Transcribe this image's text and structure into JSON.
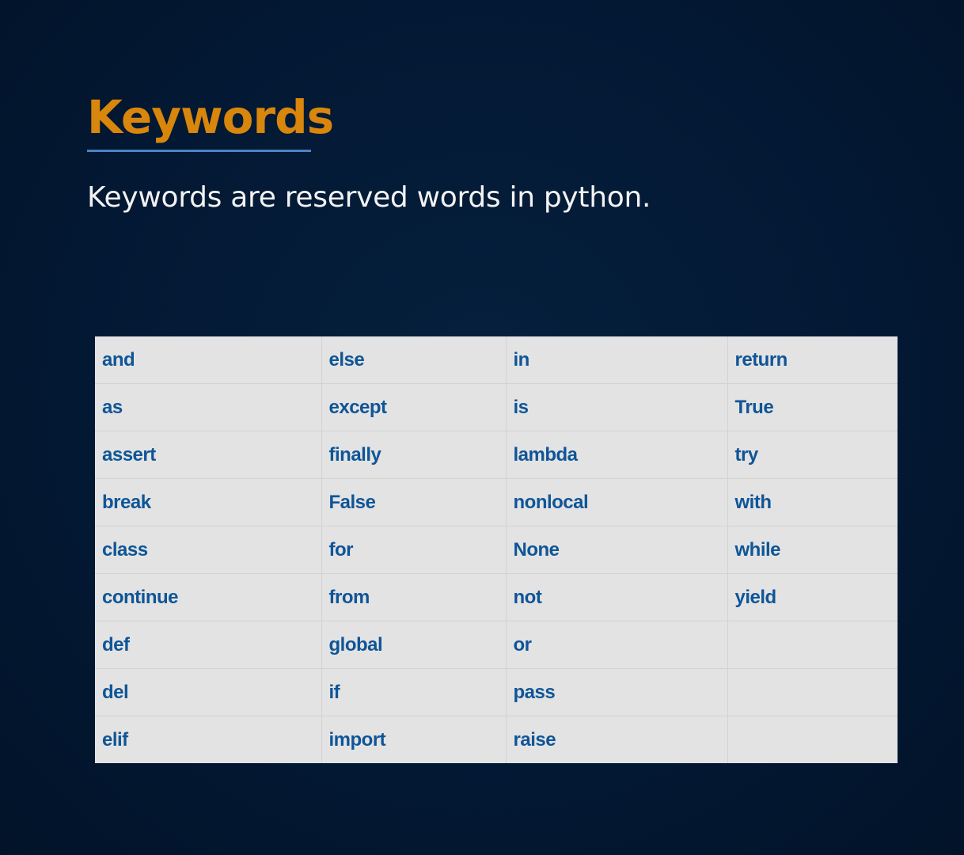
{
  "slide": {
    "title": "Keywords",
    "subtitle": "Keywords are reserved words in python."
  },
  "colors": {
    "background": "#031730",
    "title": "#d8860c",
    "title_underline": "#4d82c4",
    "subtitle": "#f2f2f2",
    "table_background": "#e3e3e3",
    "keyword_text": "#0f5597"
  },
  "keywords_table": {
    "rows": [
      [
        "and",
        "else",
        "in",
        "return"
      ],
      [
        "as",
        "except",
        "is",
        "True"
      ],
      [
        "assert",
        "finally",
        "lambda",
        "try"
      ],
      [
        "break",
        "False",
        "nonlocal",
        "with"
      ],
      [
        "class",
        "for",
        "None",
        "while"
      ],
      [
        "continue",
        "from",
        "not",
        "yield"
      ],
      [
        "def",
        "global",
        "or",
        ""
      ],
      [
        "del",
        "if",
        "pass",
        ""
      ],
      [
        "elif",
        "import",
        "raise",
        ""
      ]
    ]
  }
}
